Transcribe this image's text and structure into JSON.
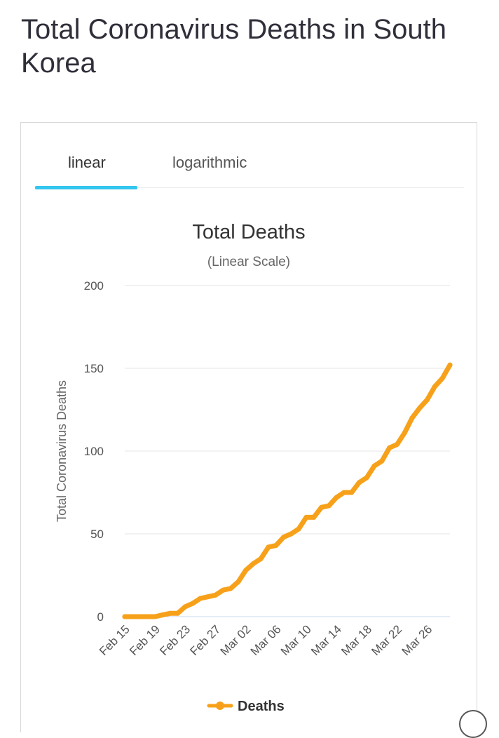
{
  "page": {
    "title": "Total Coronavirus Deaths in South Korea"
  },
  "tabs": [
    {
      "label": "linear",
      "active": true
    },
    {
      "label": "logarithmic",
      "active": false
    }
  ],
  "colors": {
    "series": "#f7a11a",
    "tab_underline": "#33c6ee",
    "grid": "#e6e6e6",
    "baseline": "#c9d8f0"
  },
  "chart_data": {
    "type": "line",
    "title": "Total Deaths",
    "subtitle": "(Linear Scale)",
    "xlabel": "",
    "ylabel": "Total Coronavirus Deaths",
    "ylim": [
      0,
      200
    ],
    "yticks": [
      0,
      50,
      100,
      150,
      200
    ],
    "grid": true,
    "legend_position": "bottom-center",
    "x": [
      "Feb 15",
      "Feb 16",
      "Feb 17",
      "Feb 18",
      "Feb 19",
      "Feb 20",
      "Feb 21",
      "Feb 22",
      "Feb 23",
      "Feb 24",
      "Feb 25",
      "Feb 26",
      "Feb 27",
      "Feb 28",
      "Feb 29",
      "Mar 01",
      "Mar 02",
      "Mar 03",
      "Mar 04",
      "Mar 05",
      "Mar 06",
      "Mar 07",
      "Mar 08",
      "Mar 09",
      "Mar 10",
      "Mar 11",
      "Mar 12",
      "Mar 13",
      "Mar 14",
      "Mar 15",
      "Mar 16",
      "Mar 17",
      "Mar 18",
      "Mar 19",
      "Mar 20",
      "Mar 21",
      "Mar 22",
      "Mar 23",
      "Mar 24",
      "Mar 25",
      "Mar 26",
      "Mar 27",
      "Mar 28",
      "Mar 29"
    ],
    "xtick_labels": [
      "Feb 15",
      "Feb 19",
      "Feb 23",
      "Feb 27",
      "Mar 02",
      "Mar 06",
      "Mar 10",
      "Mar 14",
      "Mar 18",
      "Mar 22",
      "Mar 26"
    ],
    "series": [
      {
        "name": "Deaths",
        "color": "#f7a11a",
        "values": [
          0,
          0,
          0,
          0,
          0,
          1,
          2,
          2,
          6,
          8,
          11,
          12,
          13,
          16,
          17,
          21,
          28,
          32,
          35,
          42,
          43,
          48,
          50,
          53,
          60,
          60,
          66,
          67,
          72,
          75,
          75,
          81,
          84,
          91,
          94,
          102,
          104,
          111,
          120,
          126,
          131,
          139,
          144,
          152
        ]
      }
    ]
  }
}
